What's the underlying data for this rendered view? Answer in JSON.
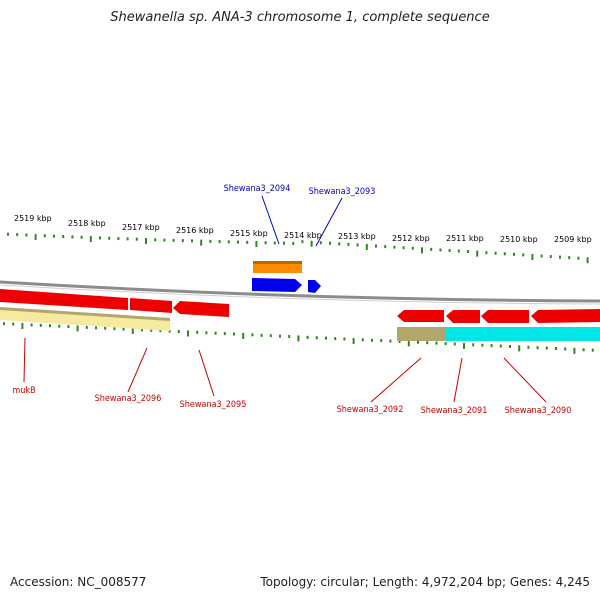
{
  "title": "Shewanella sp. ANA-3 chromosome 1, complete sequence",
  "footer": {
    "accession": "Accession: NC_008577",
    "summary": "Topology: circular; Length: 4,972,204 bp; Genes: 4,245"
  },
  "colors": {
    "tick": "#2a8a1a",
    "backbone": "#8c8c8c",
    "gene_forward": "#0000ee",
    "gene_reverse": "#ee0000",
    "label_forward": "#0000cc",
    "label_reverse": "#cc0000",
    "cds_orange": "#ff8c00",
    "cds_cyan": "#00e5e5",
    "cds_pale_yellow": "#f5eaa0",
    "cds_olive": "#b3a66b"
  },
  "scale": {
    "unit": "kbp",
    "labels": [
      "2519 kbp",
      "2518 kbp",
      "2517 kbp",
      "2516 kbp",
      "2515 kbp",
      "2514 kbp",
      "2513 kbp",
      "2512 kbp",
      "2511 kbp",
      "2510 kbp",
      "2509 kbp"
    ]
  },
  "genes_forward": [
    {
      "label": "Shewana3_2094",
      "color_name": "blue"
    },
    {
      "label": "Shewana3_2093",
      "color_name": "blue"
    }
  ],
  "genes_reverse": [
    {
      "label": "mukB"
    },
    {
      "label": "Shewana3_2096"
    },
    {
      "label": "Shewana3_2095"
    },
    {
      "label": "Shewana3_2092"
    },
    {
      "label": "Shewana3_2091"
    },
    {
      "label": "Shewana3_2090"
    }
  ]
}
